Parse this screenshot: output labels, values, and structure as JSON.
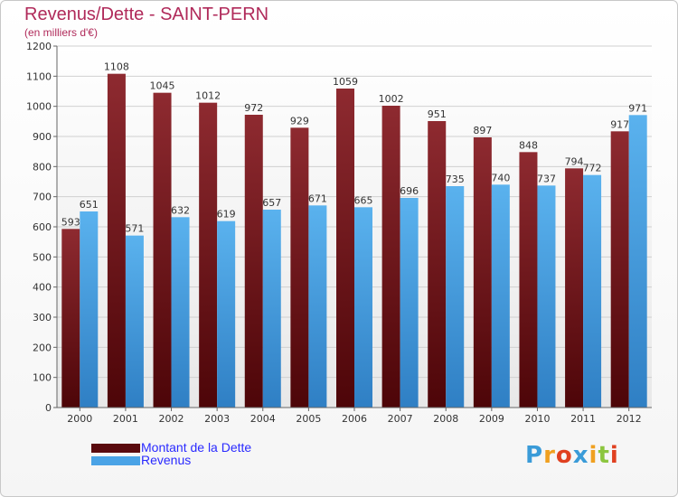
{
  "header": {
    "title": "Revenus/Dette - SAINT-PERN",
    "subtitle": "(en milliers d'€)"
  },
  "chart_data": {
    "type": "bar",
    "categories": [
      "2000",
      "2001",
      "2002",
      "2003",
      "2004",
      "2005",
      "2006",
      "2007",
      "2008",
      "2009",
      "2010",
      "2011",
      "2012"
    ],
    "series": [
      {
        "name": "Montant de la Dette",
        "color": "#7a1a1e",
        "values": [
          593,
          1108,
          1045,
          1012,
          972,
          929,
          1059,
          1002,
          951,
          897,
          848,
          794,
          917
        ]
      },
      {
        "name": "Revenus",
        "color": "#4aa3e6",
        "values": [
          651,
          571,
          632,
          619,
          657,
          671,
          665,
          696,
          735,
          740,
          737,
          772,
          971
        ]
      }
    ],
    "ylim": [
      0,
      1200
    ],
    "yticks": [
      0,
      100,
      200,
      300,
      400,
      500,
      600,
      700,
      800,
      900,
      1000,
      1100,
      1200
    ],
    "grid": true,
    "legend_position": "bottom-left"
  },
  "legend": {
    "items": [
      {
        "label": "Montant de la Dette",
        "color": "#5a0a0e"
      },
      {
        "label": "Revenus",
        "color": "#4aa3e6"
      }
    ]
  },
  "logo": {
    "letters": [
      "P",
      "r",
      "o",
      "x",
      "i",
      "t",
      "i"
    ],
    "colors": [
      "#3a9bd8",
      "#f0a020",
      "#e04020",
      "#3a9bd8",
      "#f0a020",
      "#8cc63f",
      "#e04020"
    ]
  }
}
